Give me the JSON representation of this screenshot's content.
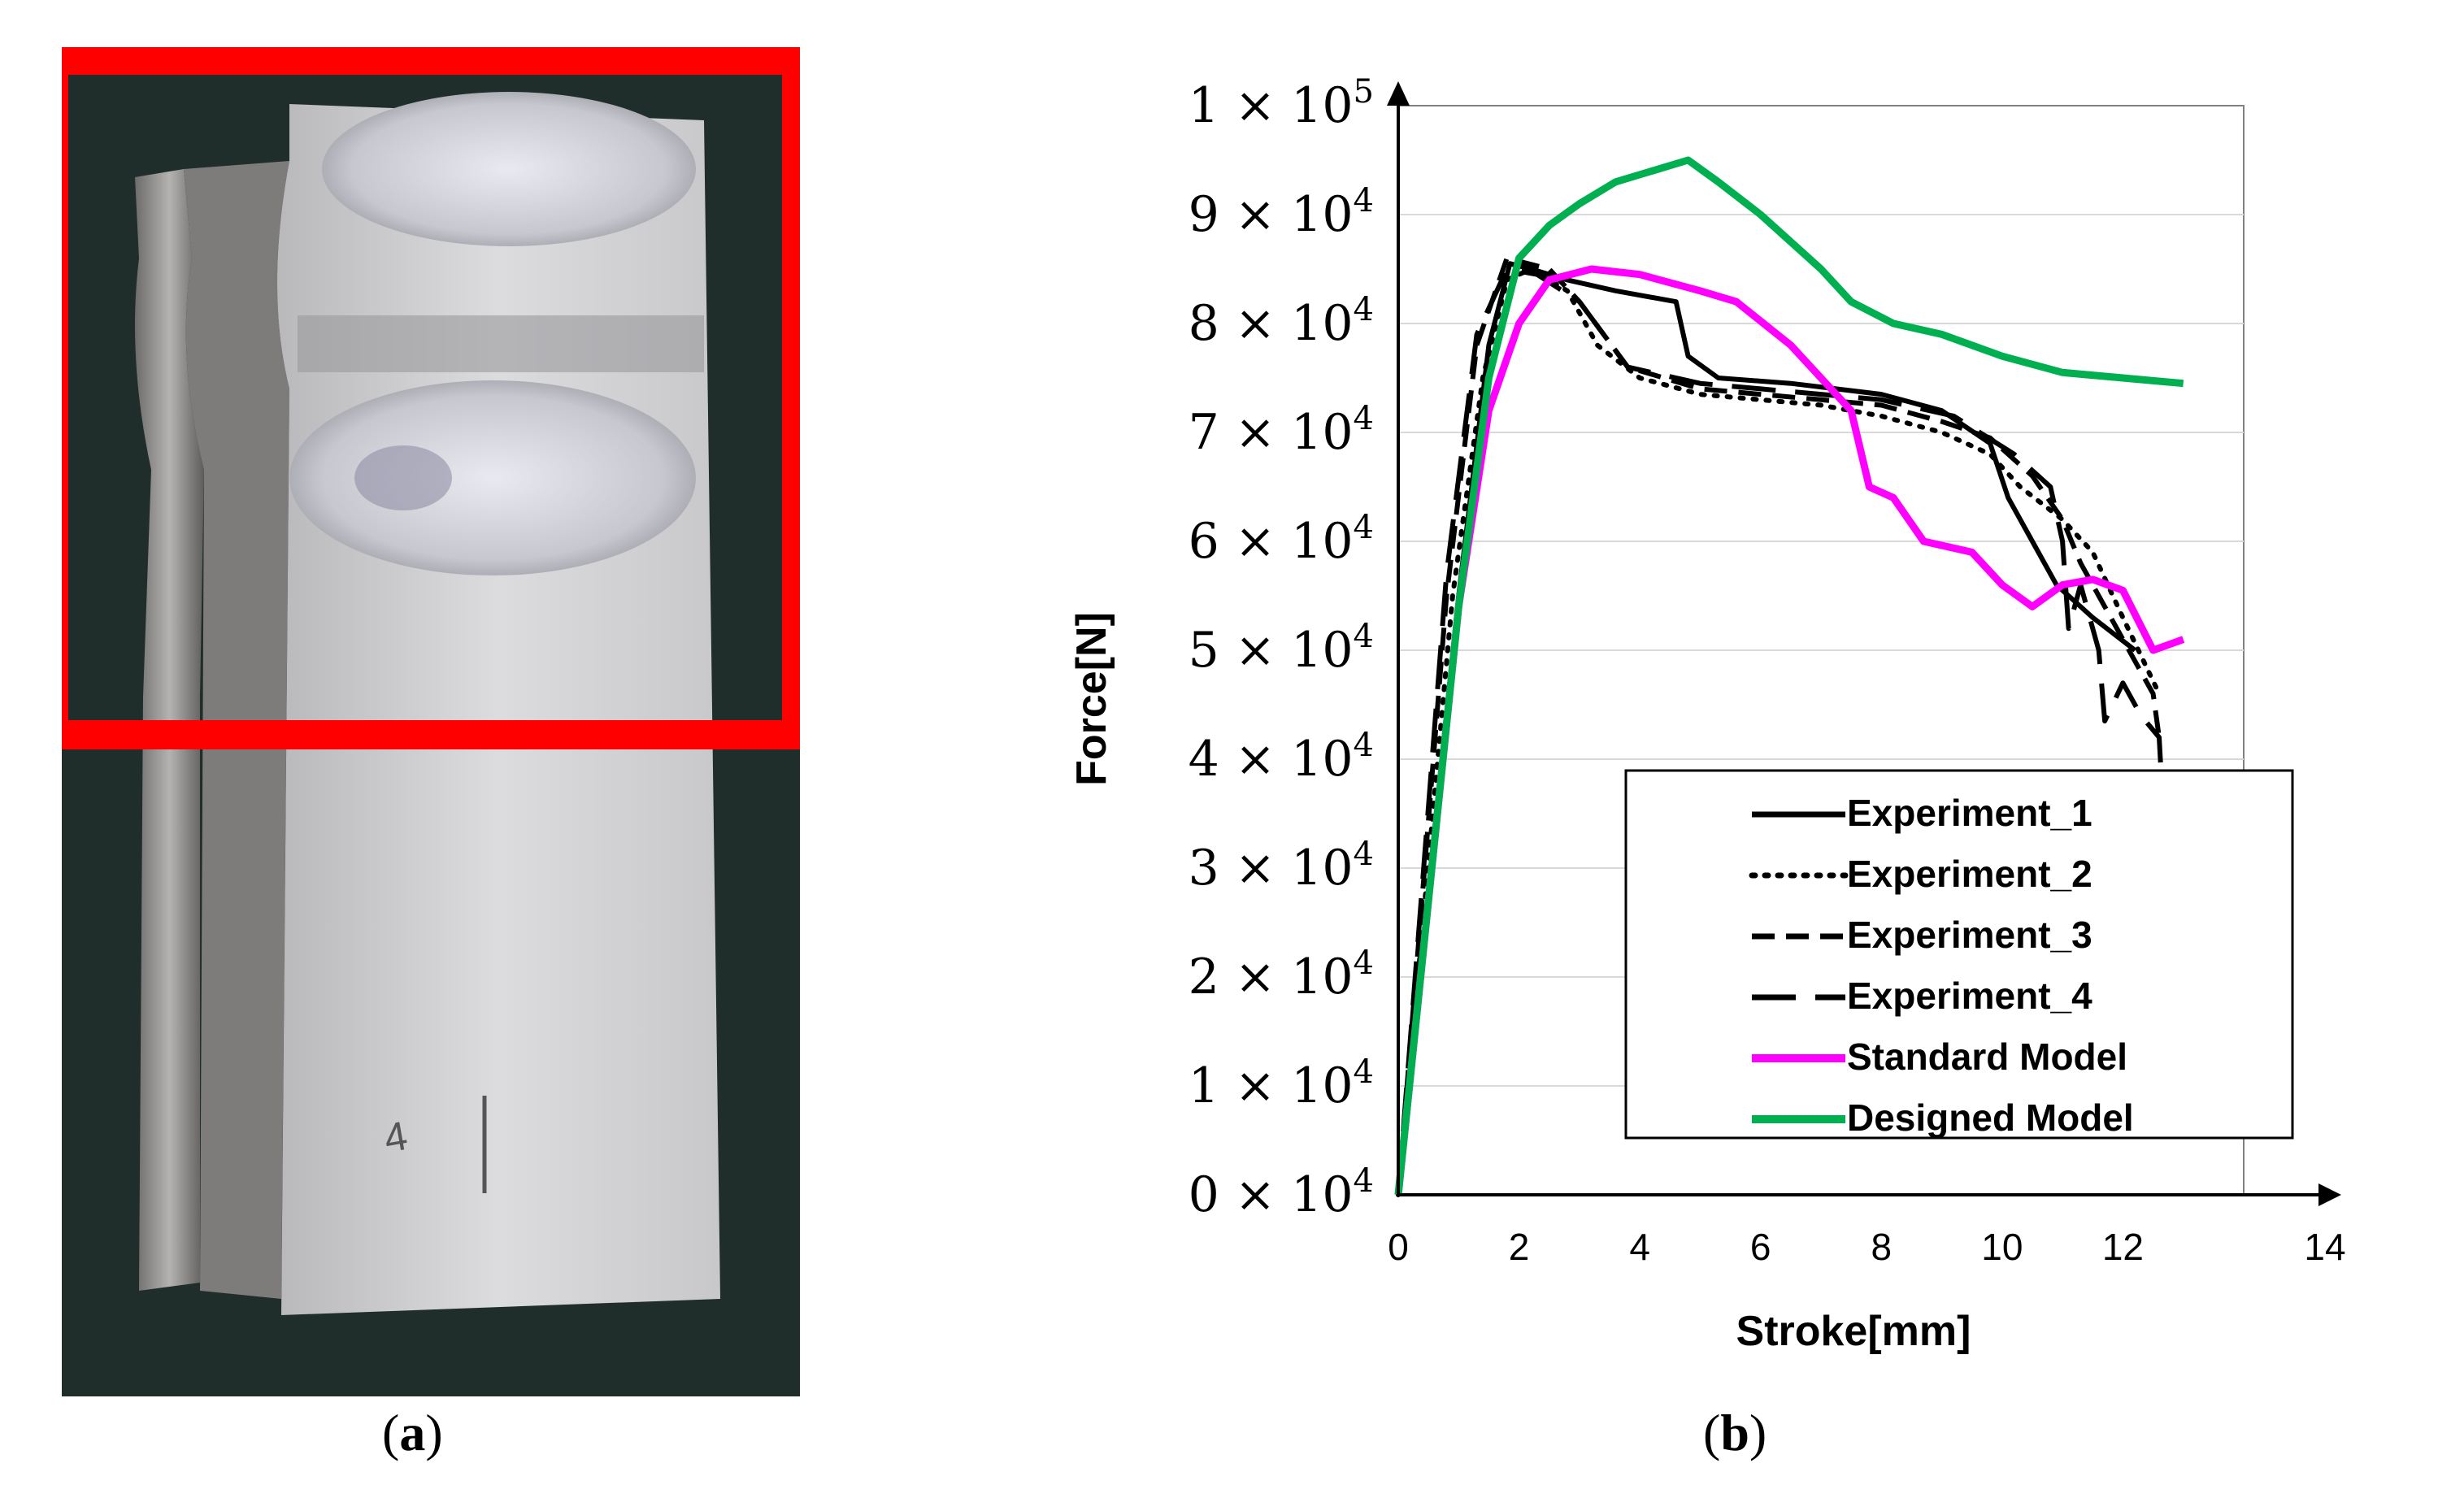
{
  "panels": {
    "a": {
      "caption_open": "(",
      "caption_letter": "a",
      "caption_close": ")"
    },
    "b": {
      "caption_open": "(",
      "caption_letter": "b",
      "caption_close": ")"
    }
  },
  "photo": {
    "description_icon": "deformed-metal-specimen-photo",
    "highlight_color": "#ff0000",
    "background_color": "#1f2e2b",
    "specimen_marking": "4"
  },
  "chart_data": {
    "type": "line",
    "xlabel": "Stroke[mm]",
    "ylabel": "Force[N]",
    "xlim": [
      0,
      14
    ],
    "ylim": [
      0,
      100000
    ],
    "x_ticks": [
      "0",
      "2",
      "4",
      "6",
      "8",
      "10",
      "12",
      "14"
    ],
    "y_ticks": [
      {
        "mant": "0",
        "exp": "4"
      },
      {
        "mant": "1",
        "exp": "4"
      },
      {
        "mant": "2",
        "exp": "4"
      },
      {
        "mant": "3",
        "exp": "4"
      },
      {
        "mant": "4",
        "exp": "4"
      },
      {
        "mant": "5",
        "exp": "4"
      },
      {
        "mant": "6",
        "exp": "4"
      },
      {
        "mant": "7",
        "exp": "4"
      },
      {
        "mant": "8",
        "exp": "4"
      },
      {
        "mant": "9",
        "exp": "4"
      },
      {
        "mant": "1",
        "exp": "5"
      }
    ],
    "grid": "horizontal",
    "legend_position": "bottom-right",
    "series": [
      {
        "name": "Experiment_1",
        "color": "#000000",
        "dash": "solid",
        "points": [
          [
            0,
            0
          ],
          [
            1,
            55000
          ],
          [
            1.5,
            78000
          ],
          [
            1.85,
            85500
          ],
          [
            2.2,
            85000
          ],
          [
            2.8,
            84000
          ],
          [
            3.6,
            83000
          ],
          [
            4.6,
            82000
          ],
          [
            4.8,
            77000
          ],
          [
            5.3,
            75000
          ],
          [
            6.5,
            74500
          ],
          [
            8,
            73500
          ],
          [
            9,
            72000
          ],
          [
            9.8,
            69000
          ],
          [
            10.1,
            64000
          ],
          [
            10.5,
            60000
          ],
          [
            10.9,
            56000
          ],
          [
            11.5,
            53000
          ],
          [
            12.2,
            50000
          ]
        ]
      },
      {
        "name": "Experiment_2",
        "color": "#000000",
        "dash": "dotted",
        "points": [
          [
            0,
            0
          ],
          [
            0.9,
            55000
          ],
          [
            1.4,
            75000
          ],
          [
            1.8,
            84000
          ],
          [
            2.2,
            85000
          ],
          [
            2.8,
            83000
          ],
          [
            3.3,
            78000
          ],
          [
            4,
            75000
          ],
          [
            5,
            73500
          ],
          [
            6,
            73000
          ],
          [
            7,
            72500
          ],
          [
            8,
            71500
          ],
          [
            9,
            70000
          ],
          [
            9.8,
            68000
          ],
          [
            10.3,
            65000
          ],
          [
            11,
            62000
          ],
          [
            11.5,
            59000
          ],
          [
            12,
            53000
          ],
          [
            12.6,
            46000
          ]
        ]
      },
      {
        "name": "Experiment_3",
        "color": "#000000",
        "dash": "dashed",
        "points": [
          [
            0,
            0
          ],
          [
            0.8,
            55000
          ],
          [
            1.3,
            78000
          ],
          [
            1.8,
            86000
          ],
          [
            2.5,
            85000
          ],
          [
            3,
            82000
          ],
          [
            3.8,
            76000
          ],
          [
            5,
            74000
          ],
          [
            6,
            73500
          ],
          [
            7,
            73000
          ],
          [
            8,
            72500
          ],
          [
            9,
            71000
          ],
          [
            9.8,
            69500
          ],
          [
            10.5,
            66000
          ],
          [
            11,
            62000
          ],
          [
            11.3,
            58000
          ],
          [
            11.7,
            54000
          ],
          [
            12.2,
            49000
          ],
          [
            12.5,
            46000
          ],
          [
            12.6,
            42000
          ]
        ]
      },
      {
        "name": "Experiment_4",
        "color": "#000000",
        "dash": "longdash",
        "points": [
          [
            0,
            0
          ],
          [
            0.8,
            57000
          ],
          [
            1.3,
            79000
          ],
          [
            1.8,
            85000
          ],
          [
            2.3,
            84500
          ],
          [
            3,
            82000
          ],
          [
            3.8,
            76000
          ],
          [
            5,
            74500
          ],
          [
            6,
            74000
          ],
          [
            7,
            73500
          ],
          [
            8,
            73000
          ],
          [
            9.2,
            71500
          ],
          [
            10.2,
            68000
          ],
          [
            10.8,
            65000
          ],
          [
            11,
            60000
          ],
          [
            11.1,
            52000
          ],
          [
            11.3,
            56000
          ],
          [
            11.6,
            50000
          ],
          [
            11.7,
            43500
          ],
          [
            12,
            47000
          ],
          [
            12.3,
            44000
          ],
          [
            12.6,
            42000
          ],
          [
            12.7,
            32000
          ]
        ]
      },
      {
        "name": "Standard Model",
        "color": "#ff00ff",
        "dash": "solid",
        "points": [
          [
            0,
            0
          ],
          [
            1,
            54000
          ],
          [
            1.5,
            72000
          ],
          [
            2,
            80000
          ],
          [
            2.5,
            84000
          ],
          [
            3.2,
            85000
          ],
          [
            4,
            84500
          ],
          [
            5,
            83000
          ],
          [
            5.6,
            82000
          ],
          [
            6.5,
            78000
          ],
          [
            7,
            75000
          ],
          [
            7.5,
            72000
          ],
          [
            7.8,
            65000
          ],
          [
            8.2,
            64000
          ],
          [
            8.7,
            60000
          ],
          [
            9.5,
            59000
          ],
          [
            10,
            56000
          ],
          [
            10.5,
            54000
          ],
          [
            11,
            56000
          ],
          [
            11.5,
            56500
          ],
          [
            12,
            55500
          ],
          [
            12.5,
            50000
          ],
          [
            13,
            51000
          ]
        ]
      },
      {
        "name": "Designed Model",
        "color": "#00b050",
        "dash": "solid",
        "points": [
          [
            0,
            0
          ],
          [
            0.5,
            27000
          ],
          [
            1,
            54000
          ],
          [
            1.5,
            75000
          ],
          [
            2,
            86000
          ],
          [
            2.5,
            89000
          ],
          [
            3,
            91000
          ],
          [
            3.6,
            93000
          ],
          [
            4.2,
            94000
          ],
          [
            4.8,
            95000
          ],
          [
            5.3,
            93000
          ],
          [
            6,
            90000
          ],
          [
            7,
            85000
          ],
          [
            7.5,
            82000
          ],
          [
            8.2,
            80000
          ],
          [
            9,
            79000
          ],
          [
            10,
            77000
          ],
          [
            11,
            75500
          ],
          [
            12,
            75000
          ],
          [
            13,
            74500
          ]
        ]
      }
    ]
  }
}
